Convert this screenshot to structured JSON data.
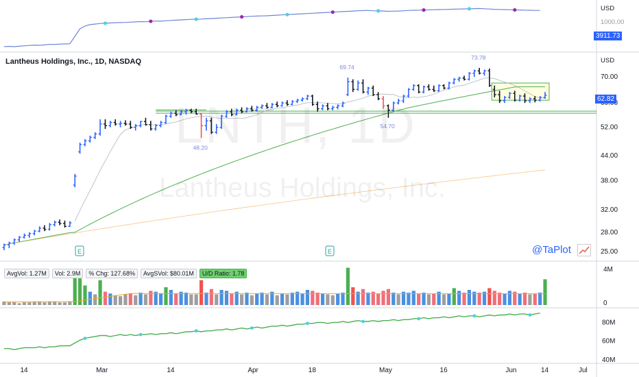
{
  "header": {
    "title": "Lantheus Holdings, Inc., 1D, NASDAQ",
    "watermark_ticker": "LNTH, 1D",
    "watermark_name": "Lantheus Holdings, Inc."
  },
  "brand": "@TaPlot",
  "colors": {
    "up": "#2962ff",
    "down": "#131722",
    "up_big": "#4caf50",
    "down_big": "#ef5350",
    "ma_fast": "#b2b5be",
    "ma_mid": "#4caf50",
    "ma_slow": "#f5c58a",
    "rs_line": "#6f85d6",
    "rs_dot_high": "#4dd0e1",
    "rs_dot_new": "#9c27b0",
    "zone_fill": "#fffde0"
  },
  "top_panel": {
    "axis_label": "USD",
    "ticks": [
      "1000.00"
    ],
    "index_price": "3911.73"
  },
  "price_panel": {
    "axis_label": "USD",
    "ticks": [
      "70.00",
      "60.00",
      "52.00",
      "44.00",
      "38.00",
      "32.00",
      "28.00",
      "25.00"
    ],
    "last_price": "62.82",
    "annotations": [
      "48.20",
      "69.74",
      "54.70",
      "73.78"
    ],
    "event_markers": [
      "E",
      "E"
    ]
  },
  "volume_panel": {
    "stats": [
      "AvgVol: 1.27M",
      "Vol: 2.9M",
      "% Chg: 127.68%",
      "AvgSVol: $80.01M",
      "U/D Ratio: 1.78"
    ],
    "ticks": [
      "4M",
      "0"
    ]
  },
  "bottom_panel": {
    "ticks": [
      "80M",
      "60M",
      "40M"
    ]
  },
  "x_axis": {
    "labels": [
      "14",
      "Mar",
      "14",
      "Apr",
      "18",
      "May",
      "16",
      "Jun",
      "14",
      "Jul"
    ]
  },
  "chart_data": {
    "type": "ohlc",
    "ohlc": [
      [
        25.6,
        26.2,
        25.2,
        26.0
      ],
      [
        26.0,
        26.5,
        25.5,
        26.3
      ],
      [
        26.3,
        27.0,
        26.0,
        26.8
      ],
      [
        26.8,
        27.4,
        26.5,
        27.2
      ],
      [
        27.2,
        27.8,
        27.0,
        27.5
      ],
      [
        27.5,
        28.0,
        27.1,
        27.8
      ],
      [
        27.8,
        28.4,
        27.5,
        28.2
      ],
      [
        28.2,
        29.0,
        28.0,
        28.7
      ],
      [
        28.7,
        29.2,
        28.2,
        28.5
      ],
      [
        28.5,
        29.6,
        28.3,
        29.3
      ],
      [
        29.3,
        30.0,
        29.0,
        29.7
      ],
      [
        29.7,
        30.2,
        29.2,
        29.5
      ],
      [
        29.5,
        30.0,
        28.8,
        29.0
      ],
      [
        29.0,
        29.9,
        28.9,
        29.6
      ],
      [
        37.0,
        39.5,
        36.5,
        39.0
      ],
      [
        45.0,
        47.5,
        44.5,
        47.0
      ],
      [
        47.0,
        48.5,
        46.5,
        48.0
      ],
      [
        48.0,
        49.5,
        47.5,
        49.0
      ],
      [
        49.0,
        50.5,
        48.5,
        50.0
      ],
      [
        50.0,
        54.5,
        49.5,
        53.0
      ],
      [
        53.0,
        54.5,
        51.5,
        52.5
      ],
      [
        52.5,
        54.0,
        52.0,
        53.5
      ],
      [
        53.5,
        54.5,
        52.5,
        53.0
      ],
      [
        53.0,
        54.0,
        52.0,
        53.2
      ],
      [
        53.2,
        54.2,
        52.5,
        53.0
      ],
      [
        53.0,
        54.0,
        51.5,
        52.0
      ],
      [
        52.0,
        53.0,
        51.0,
        52.5
      ],
      [
        52.5,
        54.0,
        52.0,
        53.8
      ],
      [
        53.8,
        55.0,
        52.5,
        52.8
      ],
      [
        52.8,
        54.0,
        51.0,
        51.5
      ],
      [
        51.5,
        53.0,
        51.0,
        52.5
      ],
      [
        52.5,
        54.0,
        52.0,
        53.5
      ],
      [
        53.5,
        56.0,
        53.0,
        55.5
      ],
      [
        55.5,
        57.0,
        55.0,
        56.5
      ],
      [
        56.5,
        57.5,
        55.5,
        56.0
      ],
      [
        56.0,
        57.5,
        55.8,
        57.0
      ],
      [
        57.0,
        58.0,
        56.0,
        57.5
      ],
      [
        57.5,
        58.0,
        56.5,
        57.0
      ],
      [
        57.0,
        58.0,
        56.0,
        56.2
      ],
      [
        56.2,
        56.5,
        48.8,
        52.5
      ],
      [
        52.5,
        55.0,
        51.0,
        54.0
      ],
      [
        54.0,
        55.0,
        50.0,
        50.5
      ],
      [
        50.5,
        53.0,
        50.0,
        52.0
      ],
      [
        52.0,
        56.0,
        51.5,
        55.5
      ],
      [
        55.5,
        57.5,
        55.0,
        57.0
      ],
      [
        57.0,
        58.0,
        55.5,
        56.0
      ],
      [
        56.0,
        58.0,
        55.8,
        57.5
      ],
      [
        57.5,
        58.5,
        56.5,
        57.0
      ],
      [
        57.0,
        58.5,
        56.8,
        58.0
      ],
      [
        58.0,
        59.0,
        57.0,
        57.5
      ],
      [
        57.5,
        59.0,
        57.0,
        58.5
      ],
      [
        58.5,
        59.5,
        58.0,
        59.0
      ],
      [
        59.0,
        60.0,
        58.0,
        58.5
      ],
      [
        58.5,
        60.0,
        58.2,
        59.5
      ],
      [
        59.5,
        60.5,
        58.5,
        59.0
      ],
      [
        59.0,
        60.5,
        58.8,
        60.0
      ],
      [
        60.0,
        61.0,
        59.0,
        59.5
      ],
      [
        59.5,
        61.0,
        59.2,
        60.5
      ],
      [
        60.5,
        61.5,
        60.0,
        61.0
      ],
      [
        61.0,
        62.0,
        60.5,
        61.5
      ],
      [
        61.5,
        63.0,
        61.0,
        62.5
      ],
      [
        62.5,
        63.0,
        59.0,
        59.5
      ],
      [
        59.5,
        60.5,
        57.0,
        58.0
      ],
      [
        58.0,
        59.5,
        57.5,
        59.0
      ],
      [
        59.0,
        60.0,
        57.5,
        58.0
      ],
      [
        58.0,
        59.0,
        57.5,
        58.5
      ],
      [
        58.5,
        59.5,
        57.8,
        59.0
      ],
      [
        59.0,
        60.5,
        58.5,
        60.0
      ],
      [
        63.0,
        69.7,
        62.5,
        68.0
      ],
      [
        68.0,
        69.0,
        64.0,
        65.0
      ],
      [
        65.0,
        68.5,
        64.5,
        67.5
      ],
      [
        67.5,
        69.0,
        63.5,
        64.0
      ],
      [
        64.0,
        66.0,
        63.0,
        65.5
      ],
      [
        65.5,
        66.5,
        62.5,
        63.0
      ],
      [
        63.0,
        64.0,
        61.0,
        61.5
      ],
      [
        61.5,
        62.5,
        58.0,
        59.0
      ],
      [
        59.0,
        59.5,
        55.0,
        57.5
      ],
      [
        57.5,
        60.5,
        57.0,
        60.0
      ],
      [
        60.0,
        61.5,
        59.5,
        60.8
      ],
      [
        60.8,
        63.0,
        60.0,
        62.5
      ],
      [
        62.5,
        65.5,
        62.0,
        65.0
      ],
      [
        65.0,
        67.0,
        64.5,
        66.5
      ],
      [
        66.5,
        67.0,
        63.5,
        64.0
      ],
      [
        64.0,
        66.5,
        63.5,
        66.0
      ],
      [
        66.0,
        67.0,
        64.5,
        65.0
      ],
      [
        65.0,
        66.5,
        64.0,
        64.5
      ],
      [
        64.5,
        67.0,
        64.0,
        66.5
      ],
      [
        66.5,
        67.0,
        65.0,
        65.5
      ],
      [
        65.5,
        68.0,
        65.0,
        67.5
      ],
      [
        67.5,
        69.5,
        67.0,
        69.0
      ],
      [
        69.0,
        70.0,
        68.0,
        69.5
      ],
      [
        69.5,
        70.5,
        68.5,
        69.0
      ],
      [
        69.0,
        72.0,
        68.5,
        71.5
      ],
      [
        71.5,
        73.0,
        70.0,
        72.5
      ],
      [
        72.5,
        73.8,
        71.0,
        71.5
      ],
      [
        71.5,
        73.0,
        70.5,
        72.5
      ],
      [
        72.5,
        73.5,
        66.0,
        66.5
      ],
      [
        65.0,
        66.5,
        62.0,
        63.0
      ],
      [
        63.0,
        64.5,
        60.0,
        60.8
      ],
      [
        60.8,
        62.5,
        60.0,
        62.0
      ],
      [
        62.0,
        64.0,
        61.5,
        63.5
      ],
      [
        63.5,
        64.5,
        60.5,
        61.0
      ],
      [
        61.0,
        63.0,
        60.5,
        62.5
      ],
      [
        62.5,
        63.5,
        60.0,
        60.8
      ],
      [
        60.8,
        62.0,
        60.0,
        61.5
      ],
      [
        61.5,
        62.5,
        60.2,
        61.0
      ],
      [
        61.0,
        62.5,
        60.5,
        62.0
      ],
      [
        62.0,
        64.0,
        61.5,
        62.8
      ]
    ],
    "volume_millions": [
      0.4,
      0.3,
      0.3,
      0.2,
      0.3,
      0.3,
      0.4,
      0.4,
      0.3,
      0.4,
      0.4,
      0.3,
      0.3,
      0.4,
      3.5,
      3.0,
      2.2,
      1.5,
      1.2,
      2.8,
      1.5,
      1.3,
      1.1,
      1.0,
      1.2,
      1.3,
      1.1,
      1.4,
      1.2,
      1.6,
      1.5,
      1.3,
      2.0,
      1.7,
      1.3,
      1.5,
      1.4,
      1.2,
      1.2,
      2.8,
      1.4,
      1.8,
      1.2,
      1.7,
      1.6,
      1.3,
      1.5,
      1.2,
      1.4,
      1.1,
      1.3,
      1.4,
      1.2,
      1.5,
      1.1,
      1.3,
      1.2,
      1.4,
      1.5,
      1.3,
      1.7,
      1.6,
      1.4,
      1.3,
      1.2,
      1.1,
      1.3,
      1.4,
      4.2,
      2.0,
      1.5,
      1.8,
      1.4,
      1.5,
      1.3,
      1.6,
      1.8,
      1.4,
      1.2,
      1.5,
      1.4,
      1.6,
      1.3,
      1.4,
      1.2,
      1.3,
      1.5,
      1.2,
      1.3,
      1.9,
      1.6,
      1.4,
      1.7,
      1.5,
      1.4,
      1.5,
      1.9,
      1.6,
      1.4,
      1.3,
      1.6,
      1.5,
      1.3,
      1.4,
      1.2,
      1.3,
      1.4,
      2.9
    ],
    "avg_volume_millions": 1.27,
    "index_close": [
      2610,
      2620,
      2608,
      2625,
      2640,
      2650,
      2660,
      2655,
      2670,
      2690,
      2685,
      2700,
      2705,
      2710,
      2980,
      3250,
      3350,
      3400,
      3420,
      3440,
      3450,
      3460,
      3470,
      3475,
      3480,
      3490,
      3500,
      3510,
      3505,
      3520,
      3530,
      3525,
      3540,
      3550,
      3560,
      3570,
      3580,
      3590,
      3595,
      3600,
      3610,
      3620,
      3630,
      3640,
      3650,
      3660,
      3670,
      3680,
      3690,
      3700,
      3710,
      3715,
      3720,
      3730,
      3740,
      3750,
      3760,
      3770,
      3780,
      3790,
      3800,
      3810,
      3820,
      3830,
      3840,
      3850,
      3860,
      3870,
      3880,
      3890,
      3900,
      3905,
      3910,
      3900,
      3895,
      3890,
      3880,
      3885,
      3890,
      3900,
      3910,
      3915,
      3920,
      3925,
      3930,
      3935,
      3940,
      3945,
      3950,
      3955,
      3960,
      3965,
      3970,
      3975,
      3980,
      3970,
      3960,
      3950,
      3945,
      3940,
      3935,
      3930,
      3925,
      3920,
      3915,
      3912,
      3911
    ],
    "rs_millions": [
      52,
      52,
      51,
      52,
      53,
      53,
      53,
      54,
      53,
      54,
      54,
      55,
      55,
      55,
      58,
      61,
      63,
      64,
      65,
      66,
      66,
      65,
      66,
      67,
      66,
      67,
      66,
      67,
      67,
      68,
      67,
      68,
      68,
      69,
      68,
      69,
      70,
      70,
      71,
      70,
      71,
      71,
      72,
      72,
      73,
      72,
      73,
      74,
      73,
      74,
      75,
      74,
      75,
      76,
      76,
      77,
      76,
      77,
      78,
      78,
      79,
      79,
      80,
      80,
      79,
      80,
      80,
      81,
      80,
      81,
      82,
      81,
      81,
      82,
      81,
      82,
      82,
      83,
      82,
      83,
      83,
      84,
      84,
      85,
      84,
      85,
      85,
      86,
      85,
      86,
      87,
      86,
      87,
      87,
      86,
      87,
      88,
      87,
      88,
      88,
      89,
      88,
      89,
      89,
      88,
      89,
      90
    ],
    "x_labels": [
      "14",
      "Mar",
      "14",
      "Apr",
      "18",
      "May",
      "16",
      "Jun",
      "14",
      "Jul"
    ]
  }
}
